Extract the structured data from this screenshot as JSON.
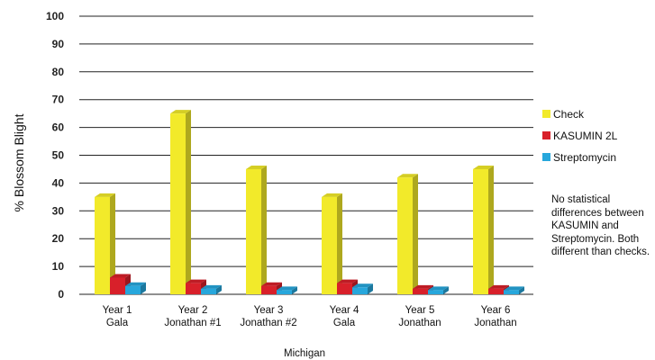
{
  "chart_data": {
    "type": "bar",
    "categories": [
      [
        "Year 1",
        "Gala"
      ],
      [
        "Year 2",
        "Jonathan #1"
      ],
      [
        "Year 3",
        "Jonathan #2"
      ],
      [
        "Year 4",
        "Gala"
      ],
      [
        "Year 5",
        "Jonathan"
      ],
      [
        "Year 6",
        "Jonathan"
      ]
    ],
    "series": [
      {
        "name": "Check",
        "color": "#f2ea2a",
        "values": [
          35,
          65,
          45,
          35,
          42,
          45
        ]
      },
      {
        "name": "KASUMIN 2L",
        "color": "#d8202a",
        "values": [
          6,
          4,
          3,
          4,
          2,
          2
        ]
      },
      {
        "name": "Streptomycin",
        "color": "#27a7dc",
        "values": [
          3,
          2,
          1.5,
          2.5,
          1.5,
          1.5
        ]
      }
    ],
    "ylabel": "% Blossom Blight",
    "xlabel": "Michigan",
    "ylim": [
      0,
      100
    ],
    "yticks": [
      0,
      10,
      20,
      30,
      40,
      50,
      60,
      70,
      80,
      90,
      100
    ],
    "grid": true,
    "legend_position": "right",
    "annotation": "No statistical differences between KASUMIN and Streptomycin. Both different than checks."
  }
}
